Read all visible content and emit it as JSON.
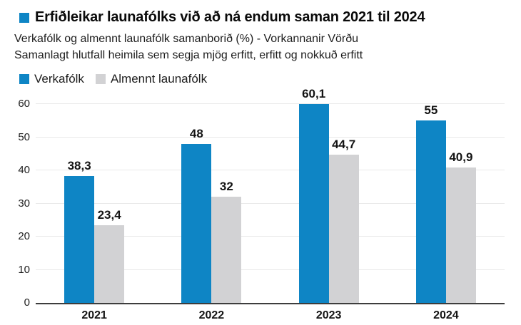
{
  "header": {
    "title": "Erfiðleikar launafólks við að ná endum saman 2021 til 2024",
    "subtitle_line1": "Verkafólk og almennt launafólk samanborið (%) - Vorkannanir Vörðu",
    "subtitle_line2": "Samanlagt hlutfall heimila sem segja mjög erfitt, erfitt og nokkuð erfitt"
  },
  "legend": [
    {
      "label": "Verkafólk",
      "color": "#0e85c5"
    },
    {
      "label": "Almennt launafólk",
      "color": "#d2d2d4"
    }
  ],
  "colors": {
    "accent_blue": "#0e85c5",
    "bar_gray": "#d2d2d4",
    "axis": "#3d3d3d",
    "gridline": "#e9e9e9",
    "text": "#141414"
  },
  "chart_data": {
    "type": "bar",
    "title": "Erfiðleikar launafólks við að ná endum saman 2021 til 2024",
    "subtitle": "Verkafólk og almennt launafólk samanborið (%) - Vorkannanir Vörðu",
    "categories": [
      "2021",
      "2022",
      "2023",
      "2024"
    ],
    "series": [
      {
        "name": "Verkafólk",
        "color": "#0e85c5",
        "values": [
          38.3,
          48,
          60.1,
          55
        ],
        "labels": [
          "38,3",
          "48",
          "60,1",
          "55"
        ]
      },
      {
        "name": "Almennt launafólk",
        "color": "#d2d2d4",
        "values": [
          23.4,
          32,
          44.7,
          40.9
        ],
        "labels": [
          "23,4",
          "32",
          "44,7",
          "40,9"
        ]
      }
    ],
    "xlabel": "",
    "ylabel": "",
    "ylim": [
      0,
      60
    ],
    "yticks": [
      0,
      10,
      20,
      30,
      40,
      50,
      60
    ],
    "grid": true,
    "legend_position": "top-left"
  }
}
